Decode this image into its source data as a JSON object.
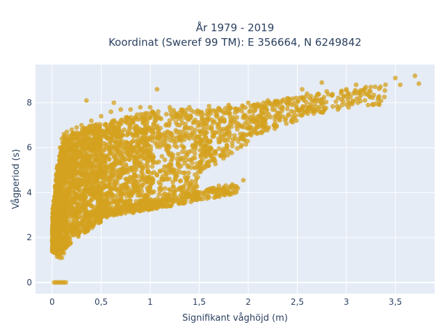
{
  "chart_data": {
    "type": "scatter",
    "title_line1": "År 1979 - 2019",
    "title_line2": "Koordinat (Sweref 99 TM): E 356664, N 6249842",
    "xlabel": "Signifikant våghöjd (m)",
    "ylabel": "Vågperiod (s)",
    "xlim": [
      -0.17,
      3.9
    ],
    "ylim": [
      -0.5,
      9.7
    ],
    "x_ticks": [
      {
        "value": 0,
        "label": "0"
      },
      {
        "value": 0.5,
        "label": "0,5"
      },
      {
        "value": 1,
        "label": "1"
      },
      {
        "value": 1.5,
        "label": "1,5"
      },
      {
        "value": 2,
        "label": "2"
      },
      {
        "value": 2.5,
        "label": "2,5"
      },
      {
        "value": 3,
        "label": "3"
      },
      {
        "value": 3.5,
        "label": "3,5"
      }
    ],
    "y_ticks": [
      {
        "value": 0,
        "label": "0"
      },
      {
        "value": 2,
        "label": "2"
      },
      {
        "value": 4,
        "label": "4"
      },
      {
        "value": 6,
        "label": "6"
      },
      {
        "value": 8,
        "label": "8"
      }
    ],
    "grid": true,
    "legend": "none",
    "colors": {
      "marker": "#d4a21f",
      "plot_bg": "#e5ecf6",
      "grid": "#ffffff",
      "text": "#2a3f5f"
    },
    "series": [
      {
        "points": [
          [
            0.02,
            0.0
          ],
          [
            0.04,
            0.0
          ],
          [
            0.06,
            0.0
          ],
          [
            0.08,
            0.0
          ],
          [
            0.1,
            0.0
          ],
          [
            0.12,
            0.0
          ],
          [
            0.14,
            0.0
          ],
          [
            0.02,
            1.5
          ],
          [
            0.04,
            1.3
          ],
          [
            0.06,
            1.2
          ],
          [
            0.08,
            1.1
          ],
          [
            0.1,
            1.1
          ],
          [
            0.12,
            1.3
          ],
          [
            0.15,
            1.6
          ],
          [
            0.18,
            1.9
          ],
          [
            0.22,
            2.1
          ],
          [
            0.28,
            2.3
          ],
          [
            0.35,
            2.5
          ],
          [
            0.45,
            2.8
          ],
          [
            0.5,
            2.9
          ],
          [
            0.02,
            2.9
          ],
          [
            0.04,
            3.5
          ],
          [
            0.05,
            4.5
          ],
          [
            0.06,
            5.0
          ],
          [
            0.08,
            6.0
          ],
          [
            0.1,
            6.4
          ],
          [
            0.12,
            6.6
          ],
          [
            0.15,
            6.7
          ],
          [
            0.2,
            6.8
          ],
          [
            0.25,
            6.9
          ],
          [
            0.3,
            7.0
          ],
          [
            0.4,
            7.2
          ],
          [
            0.5,
            7.4
          ],
          [
            0.6,
            7.6
          ],
          [
            0.7,
            7.7
          ],
          [
            0.8,
            7.7
          ],
          [
            0.9,
            7.8
          ],
          [
            1.0,
            7.8
          ],
          [
            1.2,
            7.8
          ],
          [
            1.4,
            7.8
          ],
          [
            1.6,
            7.85
          ],
          [
            1.8,
            7.9
          ],
          [
            2.0,
            8.0
          ],
          [
            2.2,
            8.1
          ],
          [
            2.4,
            8.2
          ],
          [
            2.6,
            8.4
          ],
          [
            2.8,
            8.5
          ],
          [
            3.0,
            8.6
          ],
          [
            3.2,
            8.7
          ],
          [
            3.4,
            8.8
          ],
          [
            0.6,
            3.1
          ],
          [
            0.8,
            3.3
          ],
          [
            1.0,
            3.5
          ],
          [
            1.2,
            3.7
          ],
          [
            1.4,
            3.95
          ],
          [
            1.6,
            4.15
          ],
          [
            1.75,
            4.2
          ],
          [
            1.85,
            4.3
          ],
          [
            1.95,
            4.55
          ],
          [
            0.35,
            8.1
          ],
          [
            0.63,
            8.0
          ],
          [
            1.07,
            8.6
          ],
          [
            2.55,
            8.6
          ],
          [
            2.75,
            8.9
          ],
          [
            3.1,
            8.8
          ],
          [
            3.25,
            8.7
          ],
          [
            3.5,
            9.1
          ],
          [
            3.55,
            8.8
          ],
          [
            3.7,
            9.2
          ],
          [
            3.74,
            8.85
          ],
          [
            1.8,
            4.0
          ],
          [
            1.7,
            4.3
          ],
          [
            1.6,
            7.3
          ],
          [
            1.3,
            7.0
          ],
          [
            1.1,
            6.6
          ],
          [
            0.9,
            6.3
          ],
          [
            0.7,
            5.9
          ],
          [
            0.55,
            5.6
          ],
          [
            0.4,
            5.2
          ],
          [
            0.3,
            4.8
          ],
          [
            0.2,
            4.3
          ],
          [
            0.15,
            3.8
          ]
        ]
      }
    ]
  }
}
